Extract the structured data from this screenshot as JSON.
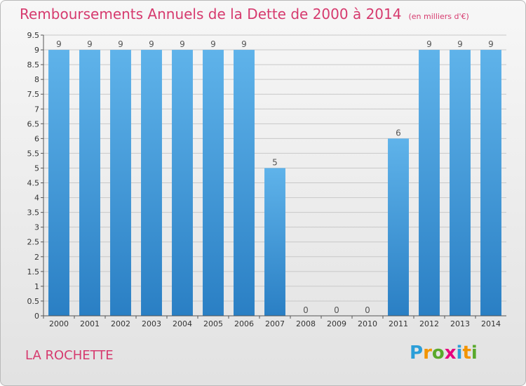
{
  "title": "Remboursements Annuels de la Dette de 2000 à 2014",
  "subtitle": "(en milliers d'€)",
  "commune": "LA ROCHETTE",
  "logo": {
    "p": "P",
    "r": "r",
    "o": "o",
    "x": "x",
    "i1": "i",
    "t": "t",
    "i2": "i"
  },
  "chart_data": {
    "type": "bar",
    "title": "Remboursements Annuels de la Dette de 2000 à 2014",
    "unit": "(en milliers d'€)",
    "categories": [
      "2000",
      "2001",
      "2002",
      "2003",
      "2004",
      "2005",
      "2006",
      "2007",
      "2008",
      "2009",
      "2010",
      "2011",
      "2012",
      "2013",
      "2014"
    ],
    "values": [
      9,
      9,
      9,
      9,
      9,
      9,
      9,
      5,
      0,
      0,
      0,
      6,
      9,
      9,
      9
    ],
    "yticks": [
      "0",
      "0.5",
      "1",
      "1.5",
      "2",
      "2.5",
      "3",
      "3.5",
      "4",
      "4.5",
      "5",
      "5.5",
      "6",
      "6.5",
      "7",
      "7.5",
      "8",
      "8.5",
      "9",
      "9.5"
    ],
    "ylim": [
      0,
      9.5
    ],
    "grid": true,
    "colors": {
      "bar_top": "#5fb3ea",
      "bar_bottom": "#2a7fc4",
      "grid": "#c8c8c8",
      "axis": "#555555"
    }
  }
}
